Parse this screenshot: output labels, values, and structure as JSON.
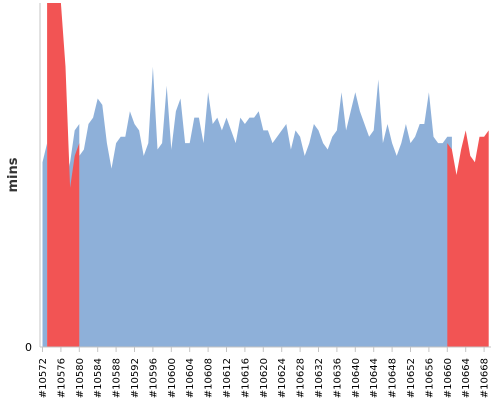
{
  "chart_data": {
    "type": "area",
    "title": "",
    "xlabel": "",
    "ylabel": "mins",
    "grid": false,
    "legend": "none",
    "ylim": [
      0,
      54
    ],
    "y_ticks": [
      {
        "value": 0,
        "label": "0"
      }
    ],
    "colors": {
      "normal": "#8eb0d9",
      "failed": "#f25454",
      "axis": "#c4c4c4"
    },
    "x_ticks": [
      "#10572",
      "#10576",
      "#10580",
      "#10584",
      "#10588",
      "#10592",
      "#10596",
      "#10600",
      "#10604",
      "#10608",
      "#10612",
      "#10616",
      "#10620",
      "#10624",
      "#10628",
      "#10632",
      "#10636",
      "#10640",
      "#10644",
      "#10648",
      "#10652",
      "#10656",
      "#10660",
      "#10664",
      "#10668"
    ],
    "series": [
      {
        "status": "normal",
        "segments": [
          {
            "x_start": 10572,
            "values": [
              29,
              32
            ]
          },
          {
            "x_start": 10577,
            "values": [
              26,
              29,
              34,
              35
            ]
          },
          {
            "x_start": 10580,
            "values": [
              30,
              31,
              35,
              36,
              39,
              38,
              32,
              28,
              32,
              33,
              33,
              37,
              35,
              34,
              30,
              32,
              44,
              31,
              32,
              41,
              31,
              37,
              39,
              32,
              32,
              36,
              36,
              32,
              40,
              35,
              36,
              34,
              36,
              34,
              32,
              36,
              35,
              36,
              36,
              37,
              34,
              34,
              32,
              33,
              34,
              35,
              31,
              34,
              33,
              30,
              32,
              35,
              34,
              32,
              31,
              33,
              34,
              40,
              34,
              37,
              40,
              37,
              35,
              33,
              34,
              42,
              32,
              35,
              32,
              30,
              32,
              35,
              32,
              33,
              35,
              35,
              40,
              33,
              32,
              32,
              33,
              33
            ]
          }
        ]
      },
      {
        "status": "failed",
        "segments": [
          {
            "x_start": 10573,
            "values": [
              54,
              54,
              54,
              54,
              44,
              25,
              30,
              32
            ]
          },
          {
            "x_start": 10660,
            "values": [
              32,
              31,
              27,
              31,
              34,
              30,
              29,
              33,
              33,
              34
            ]
          }
        ]
      }
    ]
  }
}
